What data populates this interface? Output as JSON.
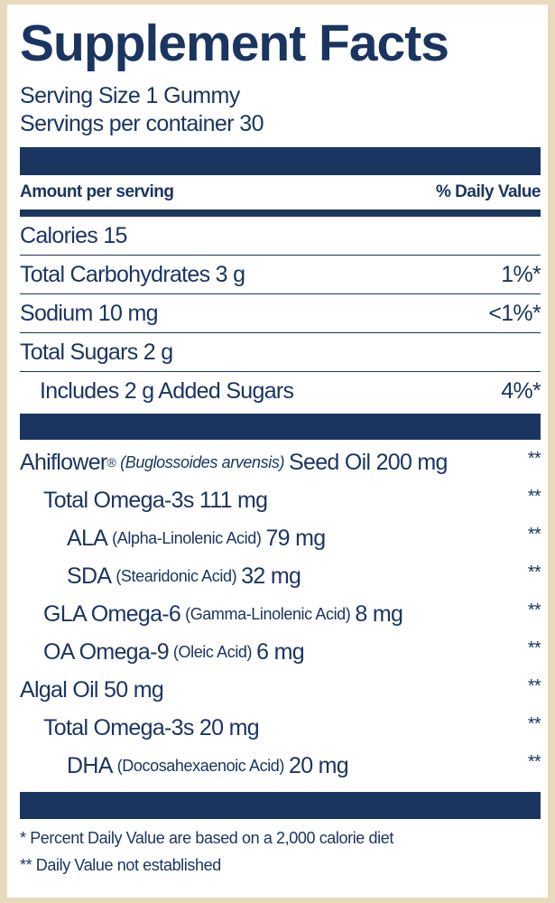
{
  "header": {
    "title": "Supplement Facts",
    "serving_size": "Serving Size 1 Gummy",
    "servings_per_container": "Servings per container 30"
  },
  "columns": {
    "amount": "Amount per serving",
    "daily_value": "% Daily Value"
  },
  "section_1": [
    {
      "name": "Calories 15"
    },
    {
      "name": "Total Carbohydrates 3 g",
      "dv": "1%*"
    },
    {
      "name": "Sodium 10 mg",
      "dv": "<1%*"
    },
    {
      "name": "Total Sugars 2 g",
      "children": [
        {
          "name": "Includes 2 g Added Sugars",
          "dv": "4%*"
        }
      ]
    }
  ],
  "section_2": [
    {
      "name": "Ahiflower",
      "mark": "®",
      "note": "(Buglossoides arvensis)",
      "amount": "Seed Oil 200 mg",
      "dv": "**",
      "children": [
        {
          "name": "Total Omega-3s 111 mg",
          "dv": "**",
          "children": [
            {
              "name": "ALA",
              "note": "(Alpha-Linolenic Acid)",
              "amount": "79 mg",
              "dv": "**"
            },
            {
              "name": "SDA",
              "note": "(Stearidonic Acid)",
              "amount": "32 mg",
              "dv": "**"
            }
          ]
        },
        {
          "name": "GLA Omega-6",
          "note": "(Gamma-Linolenic Acid)",
          "amount": "8 mg",
          "dv": "**"
        },
        {
          "name": "OA Omega-9",
          "note": "(Oleic Acid)",
          "amount": "6 mg",
          "dv": "**"
        }
      ]
    },
    {
      "name": "Algal Oil 50 mg",
      "dv": "**",
      "children": [
        {
          "name": "Total Omega-3s 20 mg",
          "dv": "**",
          "children": [
            {
              "name": "DHA",
              "note": "(Docosahexaenoic Acid)",
              "amount": "20 mg",
              "dv": "**"
            }
          ]
        }
      ]
    }
  ],
  "footnotes": [
    "* Percent Daily Value are based on a 2,000 calorie diet",
    "** Daily Value not established"
  ]
}
